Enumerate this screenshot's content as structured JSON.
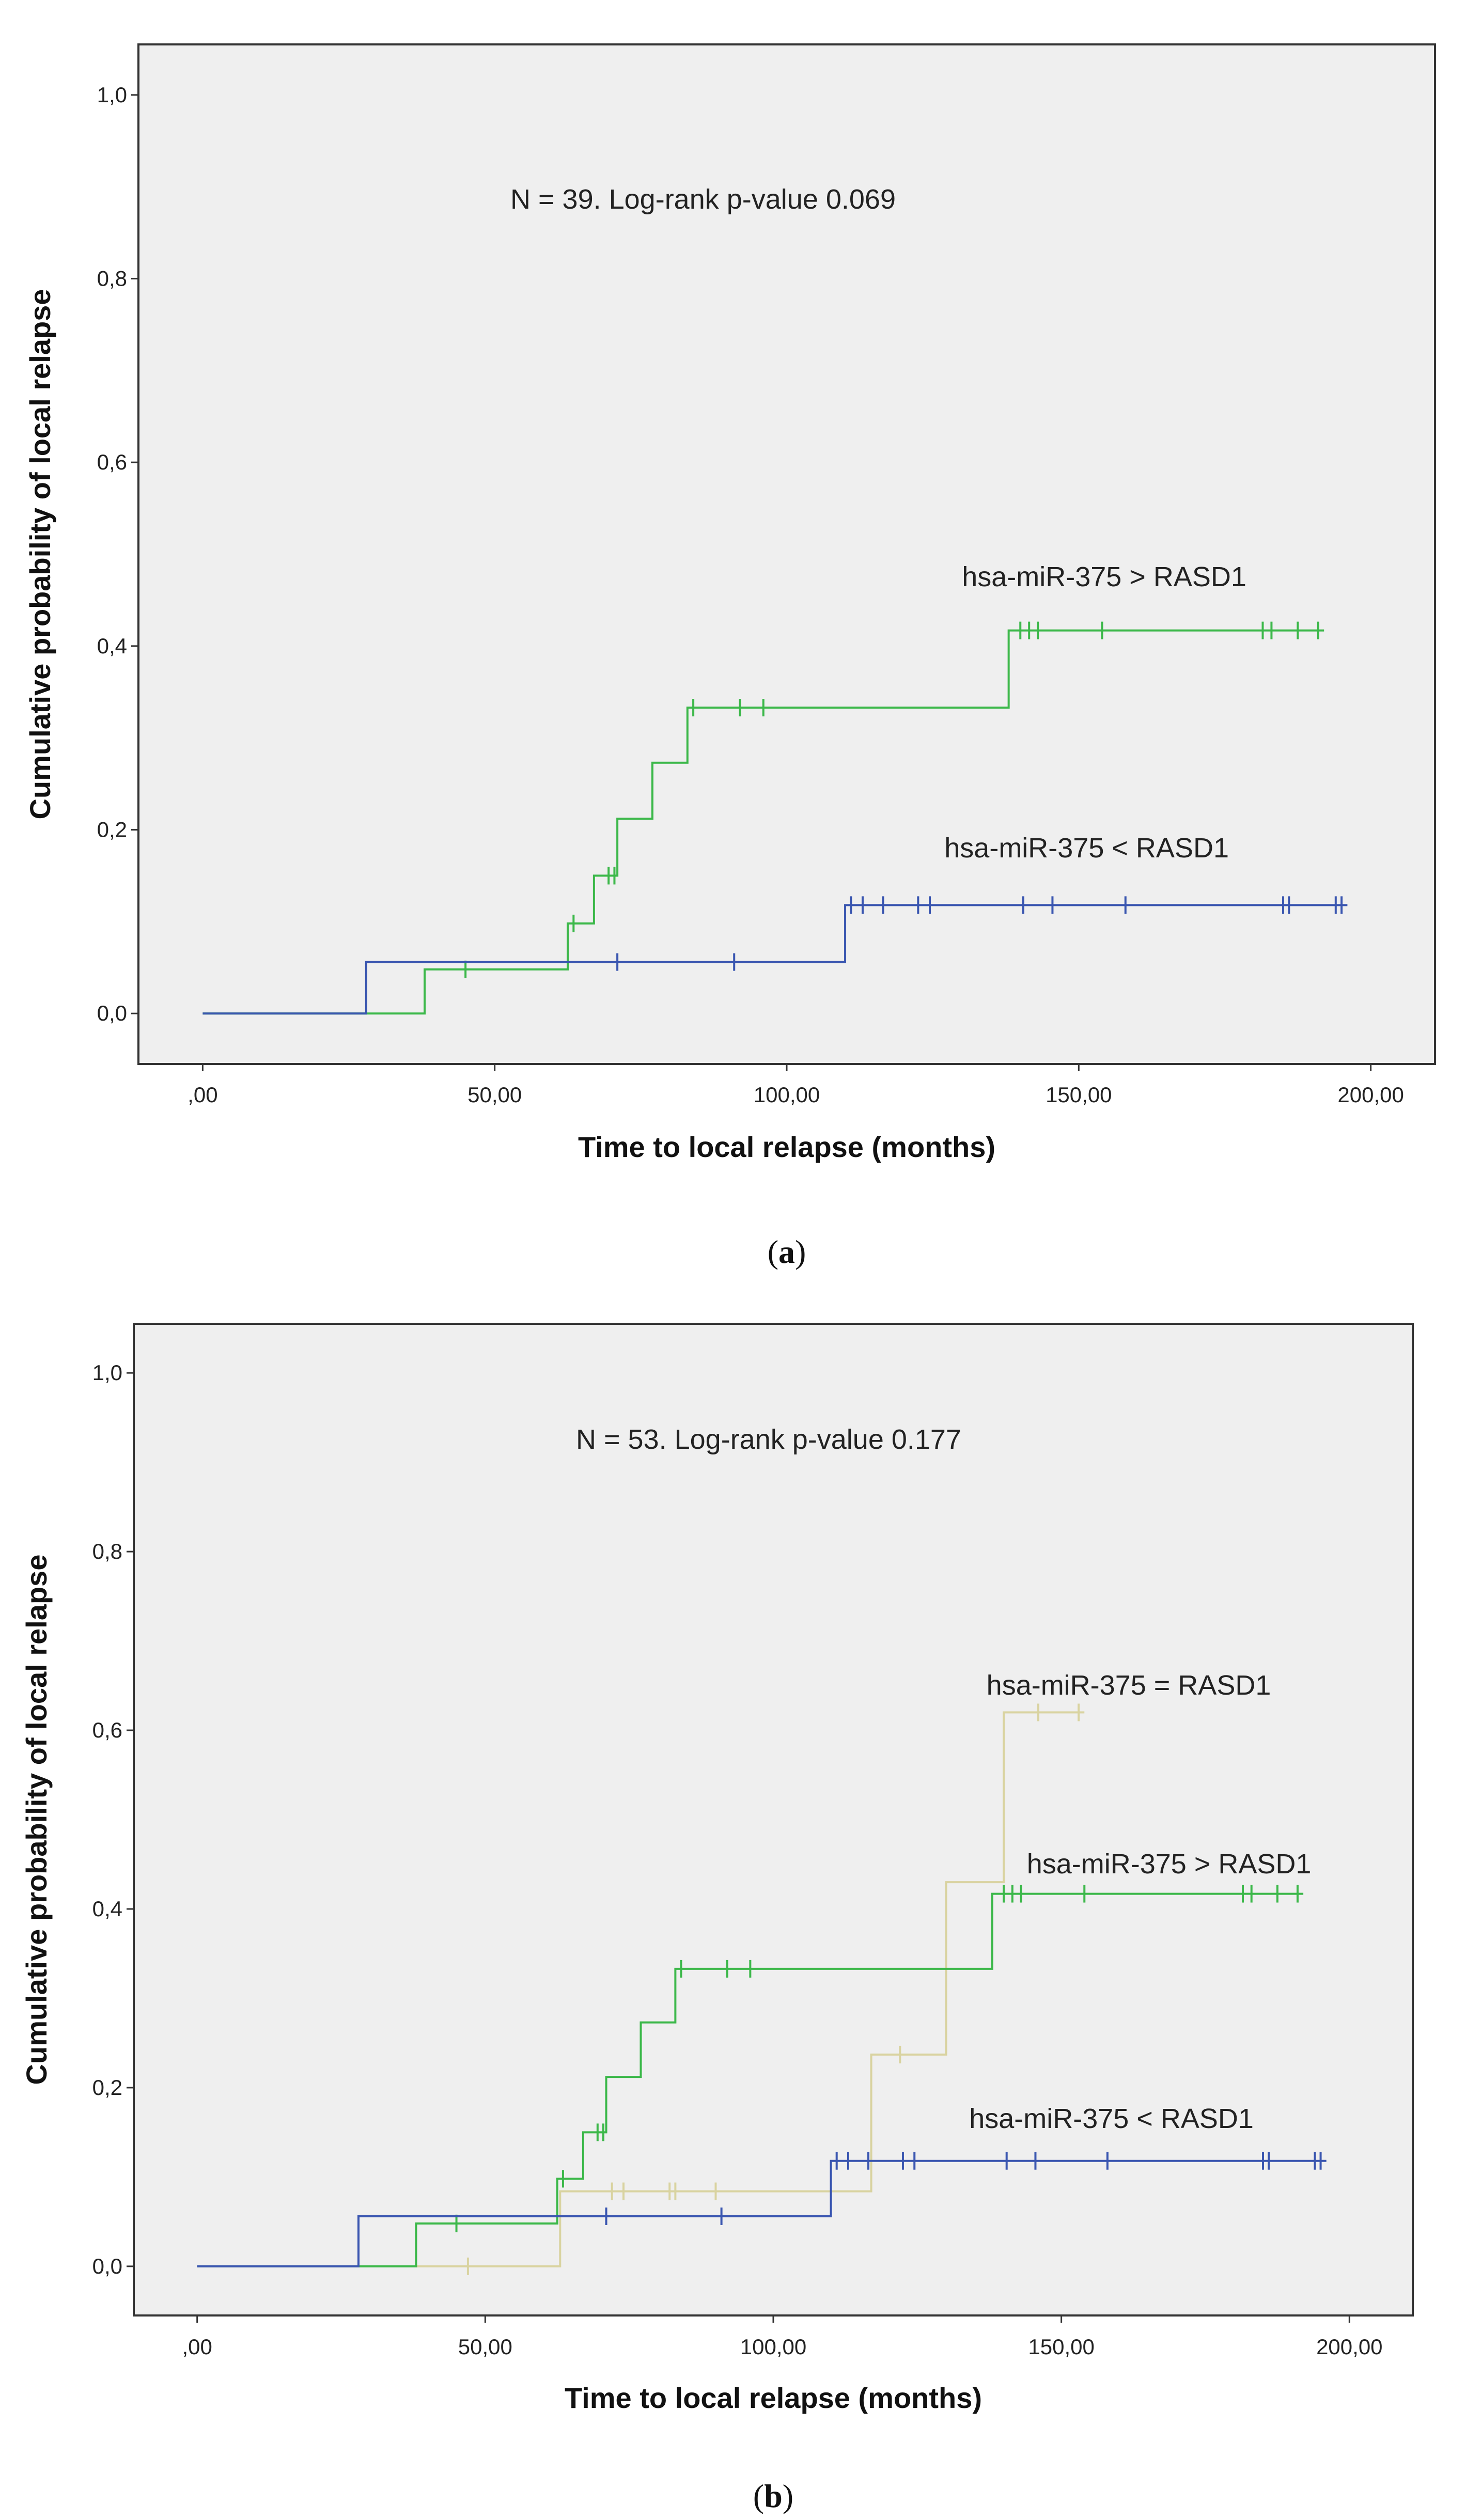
{
  "chart_data": [
    {
      "panel_label": "(a)",
      "caption_open": "(",
      "caption_letter": "a",
      "caption_close": ")",
      "type": "line",
      "step": true,
      "annotation": "N = 39. Log-rank p-value 0.069",
      "xlabel": "Time to local relapse (months)",
      "ylabel": "Cumulative probability of local relapse",
      "xlim": [
        -11,
        211
      ],
      "ylim": [
        -0.055,
        1.055
      ],
      "x_ticks": [
        0,
        50,
        100,
        150,
        200
      ],
      "x_tick_labels": [
        ",00",
        "50,00",
        "100,00",
        "150,00",
        "200,00"
      ],
      "y_ticks": [
        0,
        0.2,
        0.4,
        0.6,
        0.8,
        1.0
      ],
      "y_tick_labels": [
        "0,0",
        "0,2",
        "0,4",
        "0,6",
        "0,8",
        "1,0"
      ],
      "series": [
        {
          "name": "hsa-miR-375 > RASD1",
          "color": "#3cb84a",
          "steps": [
            [
              0,
              0
            ],
            [
              38,
              0.048
            ],
            [
              62.5,
              0.098
            ],
            [
              67,
              0.15
            ],
            [
              71,
              0.212
            ],
            [
              77,
              0.273
            ],
            [
              83,
              0.333
            ],
            [
              138,
              0.417
            ],
            [
              192,
              0.417
            ]
          ],
          "censored": [
            [
              45,
              0.048
            ],
            [
              63.5,
              0.098
            ],
            [
              69.5,
              0.15
            ],
            [
              70.5,
              0.15
            ],
            [
              84,
              0.333
            ],
            [
              92,
              0.333
            ],
            [
              96,
              0.333
            ],
            [
              140,
              0.417
            ],
            [
              141.5,
              0.417
            ],
            [
              143,
              0.417
            ],
            [
              154,
              0.417
            ],
            [
              181.5,
              0.417
            ],
            [
              183,
              0.417
            ],
            [
              187.5,
              0.417
            ],
            [
              191,
              0.417
            ]
          ],
          "label_anchor": [
            130,
            0.465
          ]
        },
        {
          "name": "hsa-miR-375 < RASD1",
          "color": "#3a56b0",
          "steps": [
            [
              0,
              0
            ],
            [
              28,
              0.056
            ],
            [
              110,
              0.118
            ],
            [
              196,
              0.118
            ]
          ],
          "censored": [
            [
              71,
              0.056
            ],
            [
              91,
              0.056
            ],
            [
              111,
              0.118
            ],
            [
              113,
              0.118
            ],
            [
              116.5,
              0.118
            ],
            [
              122.5,
              0.118
            ],
            [
              124.5,
              0.118
            ],
            [
              140.5,
              0.118
            ],
            [
              145.5,
              0.118
            ],
            [
              158,
              0.118
            ],
            [
              185,
              0.118
            ],
            [
              186,
              0.118
            ],
            [
              194,
              0.118
            ],
            [
              195,
              0.118
            ]
          ],
          "label_anchor": [
            127,
            0.17
          ]
        }
      ]
    },
    {
      "panel_label": "(b)",
      "caption_open": "(",
      "caption_letter": "b",
      "caption_close": ")",
      "type": "line",
      "step": true,
      "annotation": "N = 53. Log-rank p-value 0.177",
      "xlabel": "Time to local relapse (months)",
      "ylabel": "Cumulative probability of local relapse",
      "xlim": [
        -11,
        211
      ],
      "ylim": [
        -0.055,
        1.055
      ],
      "x_ticks": [
        0,
        50,
        100,
        150,
        200
      ],
      "x_tick_labels": [
        ",00",
        "50,00",
        "100,00",
        "150,00",
        "200,00"
      ],
      "y_ticks": [
        0,
        0.2,
        0.4,
        0.6,
        0.8,
        1.0
      ],
      "y_tick_labels": [
        "0,0",
        "0,2",
        "0,4",
        "0,6",
        "0,8",
        "1,0"
      ],
      "series": [
        {
          "name": "hsa-miR-375 = RASD1",
          "color": "#d9d3a0",
          "steps": [
            [
              0,
              0
            ],
            [
              63,
              0.084
            ],
            [
              117,
              0.237
            ],
            [
              130,
              0.43
            ],
            [
              140,
              0.62
            ],
            [
              154,
              0.62
            ]
          ],
          "censored": [
            [
              47,
              0
            ],
            [
              72,
              0.084
            ],
            [
              74,
              0.084
            ],
            [
              82,
              0.084
            ],
            [
              83,
              0.084
            ],
            [
              90,
              0.084
            ],
            [
              122,
              0.237
            ],
            [
              146,
              0.62
            ],
            [
              153,
              0.62
            ]
          ],
          "label_anchor": [
            137,
            0.64
          ]
        },
        {
          "name": "hsa-miR-375 > RASD1",
          "color": "#3cb84a",
          "steps": [
            [
              0,
              0
            ],
            [
              38,
              0.048
            ],
            [
              62.5,
              0.098
            ],
            [
              67,
              0.15
            ],
            [
              71,
              0.212
            ],
            [
              77,
              0.273
            ],
            [
              83,
              0.333
            ],
            [
              138,
              0.417
            ],
            [
              192,
              0.417
            ]
          ],
          "censored": [
            [
              45,
              0.048
            ],
            [
              63.5,
              0.098
            ],
            [
              69.5,
              0.15
            ],
            [
              70.5,
              0.15
            ],
            [
              84,
              0.333
            ],
            [
              92,
              0.333
            ],
            [
              96,
              0.333
            ],
            [
              140,
              0.417
            ],
            [
              141.5,
              0.417
            ],
            [
              143,
              0.417
            ],
            [
              154,
              0.417
            ],
            [
              181.5,
              0.417
            ],
            [
              183,
              0.417
            ],
            [
              187.5,
              0.417
            ],
            [
              191,
              0.417
            ]
          ],
          "label_anchor": [
            144,
            0.44
          ]
        },
        {
          "name": "hsa-miR-375 < RASD1",
          "color": "#3a56b0",
          "steps": [
            [
              0,
              0
            ],
            [
              28,
              0.056
            ],
            [
              110,
              0.118
            ],
            [
              196,
              0.118
            ]
          ],
          "censored": [
            [
              71,
              0.056
            ],
            [
              91,
              0.056
            ],
            [
              111,
              0.118
            ],
            [
              113,
              0.118
            ],
            [
              116.5,
              0.118
            ],
            [
              122.5,
              0.118
            ],
            [
              124.5,
              0.118
            ],
            [
              140.5,
              0.118
            ],
            [
              145.5,
              0.118
            ],
            [
              158,
              0.118
            ],
            [
              185,
              0.118
            ],
            [
              186,
              0.118
            ],
            [
              194,
              0.118
            ],
            [
              195,
              0.118
            ]
          ],
          "label_anchor": [
            134,
            0.155
          ]
        }
      ]
    }
  ]
}
